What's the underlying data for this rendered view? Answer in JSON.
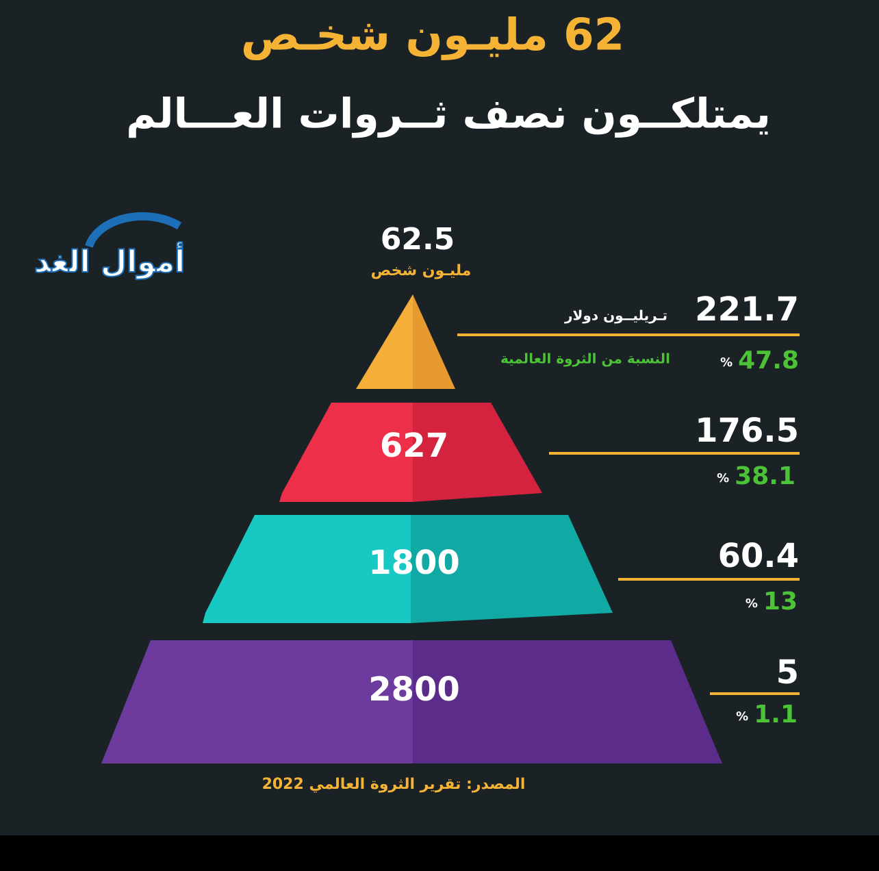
{
  "header": {
    "title": "62 مليـون شخـص",
    "subtitle": "يمتلكــون نصف ثــروات العـــالم"
  },
  "logo": "أموال الغد",
  "levels": [
    {
      "people": "62.5",
      "people_unit": "مليـون شخص",
      "wealth": "221.7",
      "wealth_unit": "تـريليــون دولار",
      "share": "47.8",
      "share_symbol": "%",
      "share_label": "النسبة من الثروة العالمية"
    },
    {
      "people": "627",
      "wealth": "176.5",
      "share": "38.1",
      "share_symbol": "%"
    },
    {
      "people": "1800",
      "wealth": "60.4",
      "share": "13",
      "share_symbol": "%"
    },
    {
      "people": "2800",
      "wealth": "5",
      "share": "1.1",
      "share_symbol": "%"
    }
  ],
  "source": "المصدر: تقرير الثروة العالمي 2022"
}
